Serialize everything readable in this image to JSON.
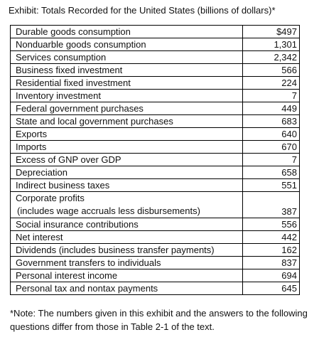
{
  "title": "Exhibit: Totals Recorded for the United States (billions of dollars)*",
  "rows": [
    {
      "label": "Durable goods consumption",
      "value": "$497"
    },
    {
      "label": "Nonduarble goods consumption",
      "value": "1,301"
    },
    {
      "label": "Services consumption",
      "value": "2,342"
    },
    {
      "label": "Business fixed investment",
      "value": "566"
    },
    {
      "label": "Residential fixed investment",
      "value": "224"
    },
    {
      "label": "Inventory investment",
      "value": "7"
    },
    {
      "label": "Federal government purchases",
      "value": "449"
    },
    {
      "label": "State and local government purchases",
      "value": "683"
    },
    {
      "label": "Exports",
      "value": "640"
    },
    {
      "label": "Imports",
      "value": "670"
    },
    {
      "label": "Excess of GNP over GDP",
      "value": "7"
    },
    {
      "label": "Depreciation",
      "value": "658"
    },
    {
      "label": "Indirect business taxes",
      "value": "551"
    },
    {
      "label": "Corporate profits",
      "label2": "(includes wage accruals less disbursements)",
      "value": "387"
    },
    {
      "label": "Social insurance contributions",
      "value": "556"
    },
    {
      "label": "Net interest",
      "value": "442"
    },
    {
      "label": "Dividends (includes business transfer payments)",
      "value": "162"
    },
    {
      "label": "Government transfers to individuals",
      "value": "837"
    },
    {
      "label": "Personal interest income",
      "value": "694"
    },
    {
      "label": "Personal tax and nontax payments",
      "value": "645"
    }
  ],
  "note": "*Note: The numbers given in this exhibit and the answers to the following questions differ from those in Table 2-1 of the text."
}
